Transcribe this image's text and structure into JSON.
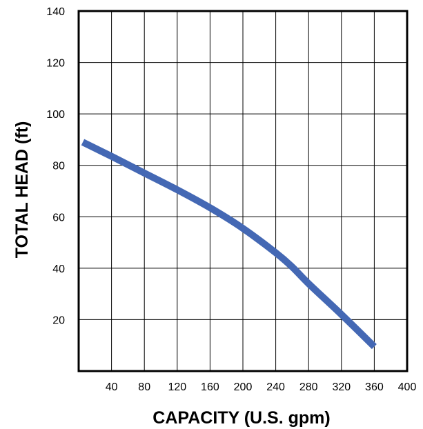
{
  "chart_data": {
    "type": "line",
    "title": "",
    "xlabel": "CAPACITY (U.S. gpm)",
    "ylabel": "TOTAL HEAD (ft)",
    "xlim": [
      0,
      400
    ],
    "ylim": [
      0,
      140
    ],
    "x_ticks": [
      40,
      80,
      120,
      160,
      200,
      240,
      280,
      320,
      360,
      400
    ],
    "y_ticks": [
      20,
      40,
      60,
      80,
      100,
      120,
      140
    ],
    "grid": true,
    "legend": "none",
    "series": [
      {
        "color": "#4468b4",
        "x": [
          5,
          40,
          80,
          120,
          160,
          200,
          240,
          260,
          280,
          320,
          360
        ],
        "y": [
          89,
          83.5,
          77,
          70.5,
          63.5,
          55.5,
          46,
          40.5,
          34,
          22,
          9.5
        ]
      }
    ]
  }
}
